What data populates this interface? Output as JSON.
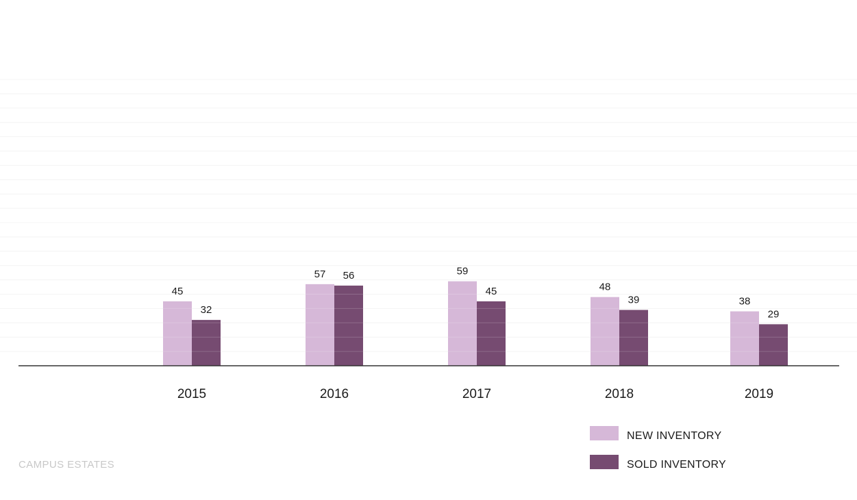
{
  "chart_data": {
    "type": "bar",
    "categories": [
      "2015",
      "2016",
      "2017",
      "2018",
      "2019"
    ],
    "series": [
      {
        "name": "NEW INVENTORY",
        "values": [
          45,
          57,
          59,
          48,
          38
        ],
        "color": "#d6b8d8"
      },
      {
        "name": "SOLD INVENTORY",
        "values": [
          32,
          56,
          45,
          39,
          29
        ],
        "color": "#764b71"
      }
    ],
    "ylim": [
      0,
      200
    ],
    "grid": true,
    "legend": "bottom-right",
    "axis_color": "#333333",
    "grid_color": "#f2f2f2"
  },
  "footer": {
    "brand": "CAMPUS ESTATES"
  }
}
